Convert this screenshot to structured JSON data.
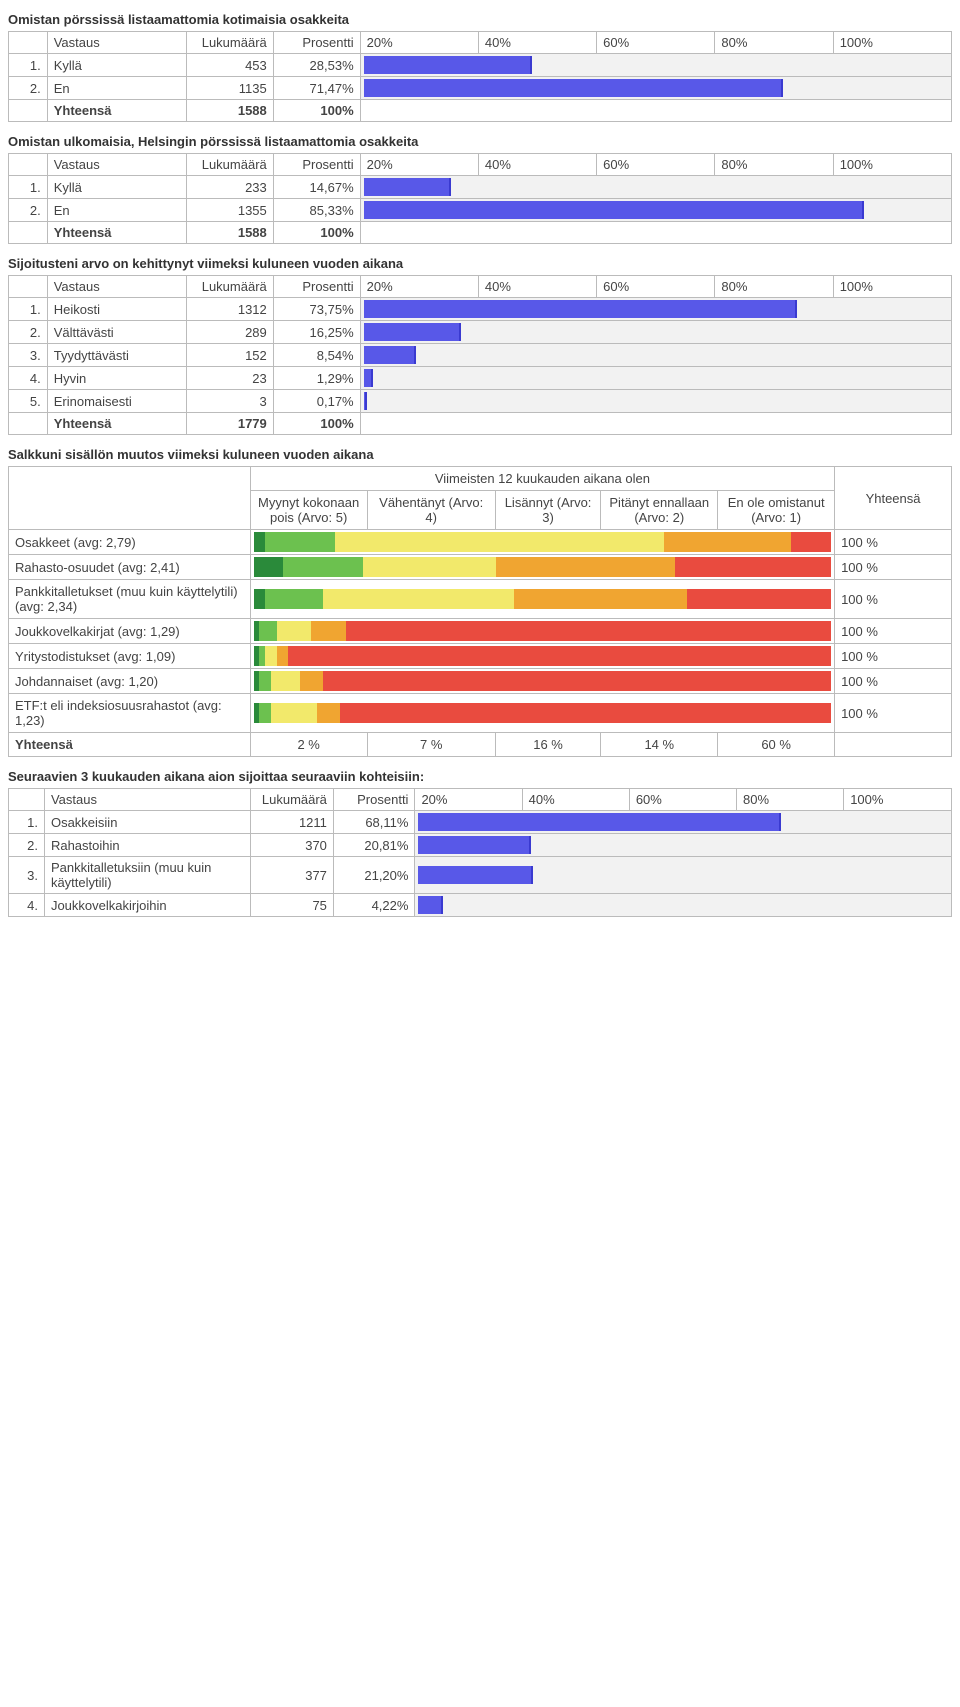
{
  "bar_color": "#5858e8",
  "bar_bg": "#f2f2f2",
  "axis_labels": [
    "20%",
    "40%",
    "60%",
    "80%",
    "100%"
  ],
  "col_headers": {
    "vastaus": "Vastaus",
    "lukumaara": "Lukumäärä",
    "prosentti": "Prosentti"
  },
  "total_label": "Yhteensä",
  "q1": {
    "title": "Omistan pörssissä listaamattomia kotimaisia osakkeita",
    "rows": [
      {
        "idx": "1.",
        "label": "Kyllä",
        "count": "453",
        "pct_text": "28,53%",
        "pct": 28.53
      },
      {
        "idx": "2.",
        "label": "En",
        "count": "1135",
        "pct_text": "71,47%",
        "pct": 71.47
      }
    ],
    "total_count": "1588",
    "total_pct": "100%"
  },
  "q2": {
    "title": "Omistan ulkomaisia, Helsingin pörssissä listaamattomia osakkeita",
    "rows": [
      {
        "idx": "1.",
        "label": "Kyllä",
        "count": "233",
        "pct_text": "14,67%",
        "pct": 14.67
      },
      {
        "idx": "2.",
        "label": "En",
        "count": "1355",
        "pct_text": "85,33%",
        "pct": 85.33
      }
    ],
    "total_count": "1588",
    "total_pct": "100%"
  },
  "q3": {
    "title": "Sijoitusteni arvo on kehittynyt viimeksi kuluneen vuoden aikana",
    "rows": [
      {
        "idx": "1.",
        "label": "Heikosti",
        "count": "1312",
        "pct_text": "73,75%",
        "pct": 73.75
      },
      {
        "idx": "2.",
        "label": "Välttävästi",
        "count": "289",
        "pct_text": "16,25%",
        "pct": 16.25
      },
      {
        "idx": "3.",
        "label": "Tyydyttävästi",
        "count": "152",
        "pct_text": "8,54%",
        "pct": 8.54
      },
      {
        "idx": "4.",
        "label": "Hyvin",
        "count": "23",
        "pct_text": "1,29%",
        "pct": 1.29
      },
      {
        "idx": "5.",
        "label": "Erinomaisesti",
        "count": "3",
        "pct_text": "0,17%",
        "pct": 0.17
      }
    ],
    "total_count": "1779",
    "total_pct": "100%"
  },
  "matrix": {
    "title": "Salkkuni sisällön muutos viimeksi kuluneen vuoden aikana",
    "super_header": "Viimeisten 12 kuukauden aikana olen",
    "cols": [
      "Myynyt kokonaan pois (Arvo: 5)",
      "Vähentänyt (Arvo: 4)",
      "Lisännyt (Arvo: 3)",
      "Pitänyt ennallaan (Arvo: 2)",
      "En ole omistanut (Arvo: 1)"
    ],
    "total_col": "Yhteensä",
    "segment_colors": [
      "#2a8a3a",
      "#6cc14f",
      "#f2e96b",
      "#f0a531",
      "#e94b3f"
    ],
    "rows": [
      {
        "label": "Osakkeet (avg: 2,79)",
        "segments": [
          2,
          12,
          57,
          22,
          7
        ],
        "total": "100 %"
      },
      {
        "label": "Rahasto-osuudet (avg: 2,41)",
        "segments": [
          5,
          14,
          23,
          31,
          27
        ],
        "total": "100 %"
      },
      {
        "label": "Pankkitalletukset (muu kuin käyttelytili) (avg: 2,34)",
        "segments": [
          2,
          10,
          33,
          30,
          25
        ],
        "total": "100 %"
      },
      {
        "label": "Joukkovelkakirjat (avg: 1,29)",
        "segments": [
          1,
          3,
          6,
          6,
          84
        ],
        "total": "100 %"
      },
      {
        "label": "Yritystodistukset (avg: 1,09)",
        "segments": [
          1,
          1,
          2,
          2,
          94
        ],
        "total": "100 %"
      },
      {
        "label": "Johdannaiset (avg: 1,20)",
        "segments": [
          1,
          2,
          5,
          4,
          88
        ],
        "total": "100 %"
      },
      {
        "label": "ETF:t eli indeksiosuusrahastot (avg: 1,23)",
        "segments": [
          1,
          2,
          8,
          4,
          85
        ],
        "total": "100 %"
      }
    ],
    "footer": {
      "label": "Yhteensä",
      "values": [
        "2 %",
        "7 %",
        "16 %",
        "14 %",
        "60 %"
      ]
    }
  },
  "q5": {
    "title": "Seuraavien 3 kuukauden aikana aion sijoittaa seuraaviin kohteisiin:",
    "rows": [
      {
        "idx": "1.",
        "label": "Osakkeisiin",
        "count": "1211",
        "pct_text": "68,11%",
        "pct": 68.11
      },
      {
        "idx": "2.",
        "label": "Rahastoihin",
        "count": "370",
        "pct_text": "20,81%",
        "pct": 20.81
      },
      {
        "idx": "3.",
        "label": "Pankkitalletuksiin (muu kuin käyttelytili)",
        "count": "377",
        "pct_text": "21,20%",
        "pct": 21.2
      },
      {
        "idx": "4.",
        "label": "Joukkovelkakirjoihin",
        "count": "75",
        "pct_text": "4,22%",
        "pct": 4.22
      }
    ]
  }
}
